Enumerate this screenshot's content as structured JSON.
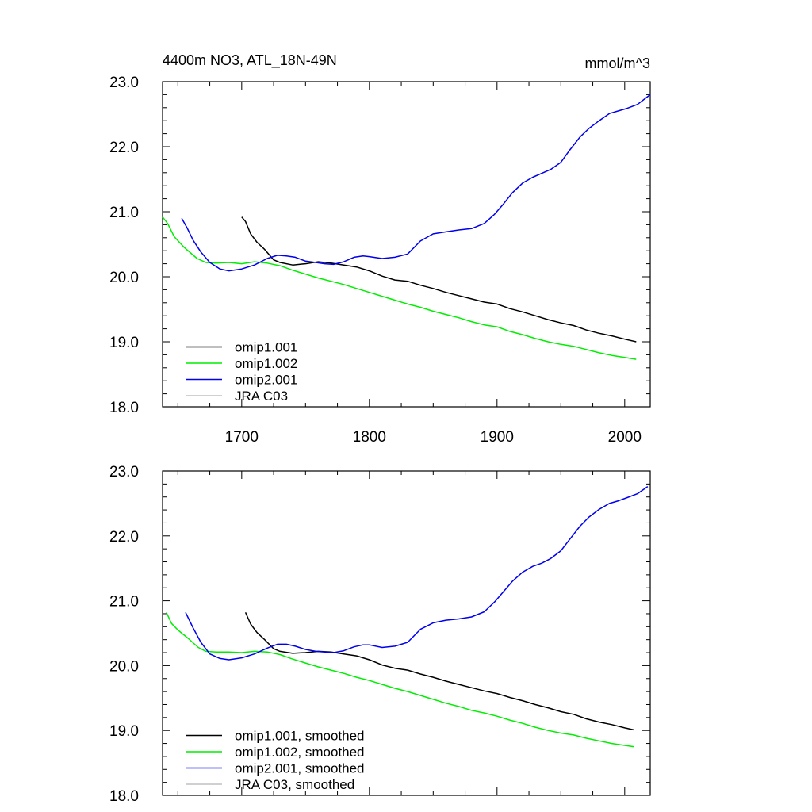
{
  "figure": {
    "title": "4400m NO3, ATL_18N-49N",
    "units": "mmol/m^3"
  },
  "chart_data": [
    {
      "type": "line",
      "title": "4400m NO3, ATL_18N-49N",
      "units_label": "mmol/m^3",
      "xlim": [
        1638,
        2020
      ],
      "ylim": [
        18.0,
        23.0
      ],
      "x_major_ticks": [
        1700,
        1800,
        1900,
        2000
      ],
      "x_tick_labels": [
        "1700",
        "1800",
        "1900",
        "2000"
      ],
      "y_major_ticks": [
        18.0,
        19.0,
        20.0,
        21.0,
        22.0,
        23.0
      ],
      "y_tick_labels": [
        "18.0",
        "19.0",
        "20.0",
        "21.0",
        "22.0",
        "23.0"
      ],
      "legend_position": "lower-left",
      "series": [
        {
          "name": "omip1.001",
          "color": "#000000",
          "x": [
            1700,
            1703,
            1707,
            1712,
            1718,
            1725,
            1730,
            1740,
            1750,
            1760,
            1770,
            1780,
            1790,
            1800,
            1810,
            1820,
            1830,
            1840,
            1850,
            1860,
            1870,
            1880,
            1890,
            1900,
            1910,
            1920,
            1930,
            1940,
            1950,
            1960,
            1970,
            1980,
            1990,
            2000,
            2009
          ],
          "values": [
            20.92,
            20.85,
            20.66,
            20.53,
            20.42,
            20.26,
            20.22,
            20.18,
            20.2,
            20.23,
            20.21,
            20.18,
            20.15,
            20.09,
            20.01,
            19.95,
            19.93,
            19.87,
            19.82,
            19.76,
            19.71,
            19.66,
            19.61,
            19.58,
            19.51,
            19.46,
            19.4,
            19.34,
            19.29,
            19.25,
            19.18,
            19.13,
            19.09,
            19.04,
            19.0
          ]
        },
        {
          "name": "omip1.002",
          "color": "#00ee00",
          "x": [
            1638,
            1642,
            1647,
            1655,
            1665,
            1672,
            1680,
            1690,
            1700,
            1710,
            1720,
            1730,
            1740,
            1750,
            1760,
            1770,
            1780,
            1790,
            1800,
            1810,
            1820,
            1830,
            1840,
            1850,
            1860,
            1870,
            1880,
            1890,
            1900,
            1910,
            1920,
            1930,
            1940,
            1950,
            1960,
            1970,
            1980,
            1990,
            2000,
            2009
          ],
          "values": [
            20.92,
            20.82,
            20.62,
            20.45,
            20.28,
            20.22,
            20.21,
            20.22,
            20.2,
            20.23,
            20.21,
            20.17,
            20.1,
            20.04,
            19.98,
            19.93,
            19.88,
            19.82,
            19.76,
            19.7,
            19.64,
            19.58,
            19.53,
            19.47,
            19.42,
            19.37,
            19.31,
            19.26,
            19.23,
            19.16,
            19.11,
            19.05,
            19.0,
            18.96,
            18.93,
            18.88,
            18.83,
            18.79,
            18.76,
            18.73
          ]
        },
        {
          "name": "omip2.001",
          "color": "#0000ee",
          "x": [
            1653,
            1657,
            1662,
            1668,
            1675,
            1683,
            1690,
            1700,
            1710,
            1720,
            1728,
            1735,
            1742,
            1750,
            1758,
            1765,
            1772,
            1780,
            1788,
            1795,
            1800,
            1810,
            1820,
            1830,
            1840,
            1850,
            1860,
            1870,
            1880,
            1890,
            1898,
            1905,
            1912,
            1920,
            1928,
            1935,
            1942,
            1950,
            1957,
            1965,
            1972,
            1980,
            1988,
            1995,
            2002,
            2010,
            2020
          ],
          "values": [
            20.9,
            20.76,
            20.56,
            20.38,
            20.22,
            20.12,
            20.09,
            20.12,
            20.18,
            20.28,
            20.33,
            20.32,
            20.3,
            20.24,
            20.22,
            20.2,
            20.19,
            20.23,
            20.3,
            20.32,
            20.31,
            20.28,
            20.3,
            20.35,
            20.55,
            20.66,
            20.69,
            20.72,
            20.74,
            20.82,
            20.96,
            21.12,
            21.29,
            21.44,
            21.53,
            21.59,
            21.65,
            21.76,
            21.95,
            22.15,
            22.28,
            22.4,
            22.51,
            22.55,
            22.59,
            22.65,
            22.8
          ]
        },
        {
          "name": "JRA C03",
          "color": "#c0c0c0",
          "x": [],
          "values": []
        }
      ]
    },
    {
      "type": "line",
      "xlim": [
        1638,
        2020
      ],
      "ylim": [
        18.0,
        23.0
      ],
      "x_major_ticks": [
        1700,
        1800,
        1900,
        2000
      ],
      "y_major_ticks": [
        18.0,
        19.0,
        20.0,
        21.0,
        22.0,
        23.0
      ],
      "y_tick_labels": [
        "18.0",
        "19.0",
        "20.0",
        "21.0",
        "22.0",
        "23.0"
      ],
      "legend_position": "lower-left",
      "series": [
        {
          "name": "omip1.001, smoothed",
          "color": "#000000",
          "x": [
            1703,
            1707,
            1712,
            1718,
            1725,
            1730,
            1740,
            1750,
            1760,
            1770,
            1780,
            1790,
            1800,
            1810,
            1820,
            1830,
            1840,
            1850,
            1860,
            1870,
            1880,
            1890,
            1900,
            1910,
            1920,
            1930,
            1940,
            1950,
            1960,
            1970,
            1980,
            1990,
            2000,
            2007
          ],
          "values": [
            20.82,
            20.64,
            20.51,
            20.4,
            20.26,
            20.22,
            20.19,
            20.2,
            20.22,
            20.21,
            20.18,
            20.15,
            20.09,
            20.01,
            19.96,
            19.93,
            19.87,
            19.82,
            19.76,
            19.71,
            19.66,
            19.61,
            19.57,
            19.51,
            19.46,
            19.4,
            19.35,
            19.29,
            19.25,
            19.18,
            19.13,
            19.09,
            19.04,
            19.01
          ]
        },
        {
          "name": "omip1.002, smoothed",
          "color": "#00ee00",
          "x": [
            1641,
            1645,
            1650,
            1658,
            1666,
            1672,
            1680,
            1690,
            1700,
            1710,
            1720,
            1730,
            1740,
            1750,
            1760,
            1770,
            1780,
            1790,
            1800,
            1810,
            1820,
            1830,
            1840,
            1850,
            1860,
            1870,
            1880,
            1890,
            1900,
            1910,
            1920,
            1930,
            1940,
            1950,
            1960,
            1970,
            1980,
            1990,
            2000,
            2007
          ],
          "values": [
            20.82,
            20.65,
            20.55,
            20.42,
            20.28,
            20.22,
            20.21,
            20.21,
            20.2,
            20.22,
            20.21,
            20.17,
            20.1,
            20.04,
            19.98,
            19.93,
            19.88,
            19.82,
            19.77,
            19.71,
            19.65,
            19.6,
            19.54,
            19.48,
            19.42,
            19.37,
            19.31,
            19.27,
            19.22,
            19.16,
            19.11,
            19.05,
            19.0,
            18.96,
            18.93,
            18.88,
            18.84,
            18.8,
            18.77,
            18.75
          ]
        },
        {
          "name": "omip2.001, smoothed",
          "color": "#0000ee",
          "x": [
            1656,
            1662,
            1668,
            1675,
            1683,
            1690,
            1700,
            1710,
            1720,
            1728,
            1735,
            1742,
            1750,
            1758,
            1765,
            1772,
            1780,
            1788,
            1795,
            1800,
            1810,
            1820,
            1830,
            1840,
            1850,
            1860,
            1870,
            1880,
            1890,
            1898,
            1905,
            1912,
            1920,
            1928,
            1935,
            1942,
            1950,
            1957,
            1965,
            1972,
            1980,
            1988,
            1995,
            2002,
            2010,
            2018
          ],
          "values": [
            20.82,
            20.58,
            20.36,
            20.18,
            20.11,
            20.09,
            20.12,
            20.18,
            20.27,
            20.33,
            20.33,
            20.3,
            20.25,
            20.22,
            20.21,
            20.2,
            20.23,
            20.29,
            20.32,
            20.32,
            20.28,
            20.3,
            20.36,
            20.56,
            20.66,
            20.7,
            20.72,
            20.75,
            20.83,
            20.98,
            21.14,
            21.3,
            21.44,
            21.53,
            21.58,
            21.65,
            21.77,
            21.95,
            22.15,
            22.29,
            22.41,
            22.5,
            22.54,
            22.59,
            22.65,
            22.76
          ]
        },
        {
          "name": "JRA C03, smoothed",
          "color": "#c0c0c0",
          "x": [],
          "values": []
        }
      ]
    }
  ]
}
